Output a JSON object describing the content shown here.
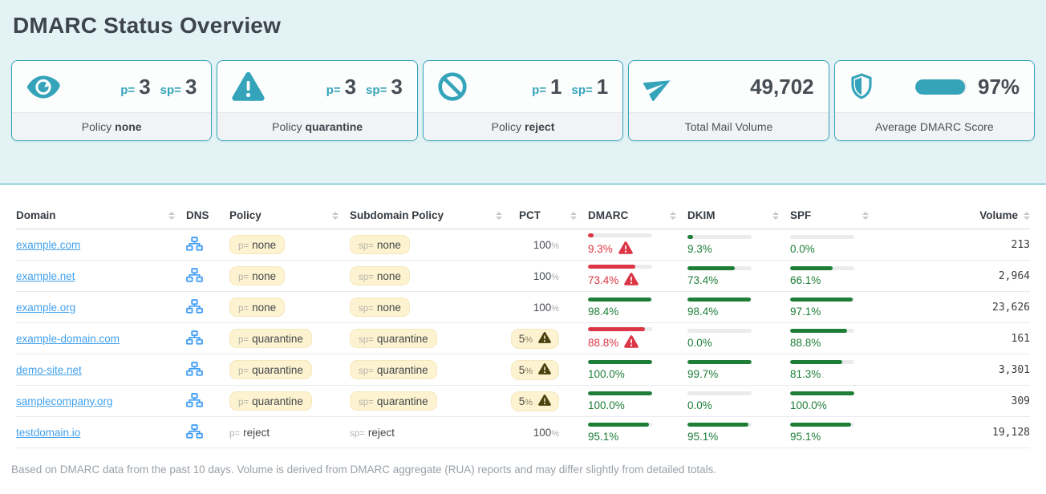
{
  "page": {
    "title": "DMARC Status Overview",
    "footnote": "Based on DMARC data from the past 10 days. Volume is derived from DMARC aggregate (RUA) reports and may differ slightly from detailed totals."
  },
  "colors": {
    "accent_teal": "#35a4ba",
    "hero_background": "#e3f2f5",
    "link_blue": "#42a1ee",
    "dns_icon_blue": "#3f9cf5",
    "badge_yellow": "#fdf3d0",
    "bar_red": "#dc3545",
    "bar_green": "#1e7e38"
  },
  "cards": [
    {
      "id": "policy-none",
      "kind": "policy",
      "icon": "eye-icon",
      "p_label": "p=",
      "p_value": "3",
      "sp_label": "sp=",
      "sp_value": "3",
      "foot_prefix": "Policy",
      "foot_value": "none"
    },
    {
      "id": "policy-quarantine",
      "kind": "policy",
      "icon": "alert-triangle-icon",
      "p_label": "p=",
      "p_value": "3",
      "sp_label": "sp=",
      "sp_value": "3",
      "foot_prefix": "Policy",
      "foot_value": "quarantine"
    },
    {
      "id": "policy-reject",
      "kind": "policy",
      "icon": "ban-icon",
      "p_label": "p=",
      "p_value": "1",
      "sp_label": "sp=",
      "sp_value": "1",
      "foot_prefix": "Policy",
      "foot_value": "reject"
    },
    {
      "id": "total-mail-volume",
      "kind": "value",
      "icon": "paper-plane-icon",
      "value": "49,702",
      "foot_label": "Total Mail Volume"
    },
    {
      "id": "average-dmarc-score",
      "kind": "score",
      "icon": "shield-icon",
      "value": "97%",
      "score_pct": 97,
      "foot_label": "Average DMARC Score"
    }
  ],
  "table": {
    "columns": [
      {
        "key": "domain",
        "label": "Domain",
        "sortable": true
      },
      {
        "key": "dns",
        "label": "DNS",
        "sortable": false
      },
      {
        "key": "policy",
        "label": "Policy",
        "sortable": true
      },
      {
        "key": "sub",
        "label": "Subdomain Policy",
        "sortable": true
      },
      {
        "key": "pct",
        "label": "PCT",
        "sortable": true
      },
      {
        "key": "dmarc",
        "label": "DMARC",
        "sortable": true
      },
      {
        "key": "dkim",
        "label": "DKIM",
        "sortable": true
      },
      {
        "key": "spf",
        "label": "SPF",
        "sortable": true
      },
      {
        "key": "vol",
        "label": "Volume",
        "sortable": true
      }
    ],
    "rows": [
      {
        "domain": "example.com",
        "policy": {
          "prefix": "p=",
          "value": "none",
          "badge": true
        },
        "sub": {
          "prefix": "sp=",
          "value": "none",
          "badge": true
        },
        "pct": {
          "value": "100",
          "warn": false
        },
        "dmarc": {
          "display": "9.3%",
          "pct": 9.3,
          "warn": true
        },
        "dkim": {
          "display": "9.3%",
          "pct": 9.3
        },
        "spf": {
          "display": "0.0%",
          "pct": 0
        },
        "volume": "213"
      },
      {
        "domain": "example.net",
        "policy": {
          "prefix": "p=",
          "value": "none",
          "badge": true
        },
        "sub": {
          "prefix": "sp=",
          "value": "none",
          "badge": true
        },
        "pct": {
          "value": "100",
          "warn": false
        },
        "dmarc": {
          "display": "73.4%",
          "pct": 73.4,
          "warn": true
        },
        "dkim": {
          "display": "73.4%",
          "pct": 73.4
        },
        "spf": {
          "display": "66.1%",
          "pct": 66.1
        },
        "volume": "2,964"
      },
      {
        "domain": "example.org",
        "policy": {
          "prefix": "p=",
          "value": "none",
          "badge": true
        },
        "sub": {
          "prefix": "sp=",
          "value": "none",
          "badge": true
        },
        "pct": {
          "value": "100",
          "warn": false
        },
        "dmarc": {
          "display": "98.4%",
          "pct": 98.4,
          "warn": false
        },
        "dkim": {
          "display": "98.4%",
          "pct": 98.4
        },
        "spf": {
          "display": "97.1%",
          "pct": 97.1
        },
        "volume": "23,626"
      },
      {
        "domain": "example-domain.com",
        "policy": {
          "prefix": "p=",
          "value": "quarantine",
          "badge": true
        },
        "sub": {
          "prefix": "sp=",
          "value": "quarantine",
          "badge": true
        },
        "pct": {
          "value": "5",
          "warn": true
        },
        "dmarc": {
          "display": "88.8%",
          "pct": 88.8,
          "warn": true
        },
        "dkim": {
          "display": "0.0%",
          "pct": 0
        },
        "spf": {
          "display": "88.8%",
          "pct": 88.8
        },
        "volume": "161"
      },
      {
        "domain": "demo-site.net",
        "policy": {
          "prefix": "p=",
          "value": "quarantine",
          "badge": true
        },
        "sub": {
          "prefix": "sp=",
          "value": "quarantine",
          "badge": true
        },
        "pct": {
          "value": "5",
          "warn": true
        },
        "dmarc": {
          "display": "100.0%",
          "pct": 100,
          "warn": false
        },
        "dkim": {
          "display": "99.7%",
          "pct": 99.7
        },
        "spf": {
          "display": "81.3%",
          "pct": 81.3
        },
        "volume": "3,301"
      },
      {
        "domain": "samplecompany.org",
        "policy": {
          "prefix": "p=",
          "value": "quarantine",
          "badge": true
        },
        "sub": {
          "prefix": "sp=",
          "value": "quarantine",
          "badge": true
        },
        "pct": {
          "value": "5",
          "warn": true
        },
        "dmarc": {
          "display": "100.0%",
          "pct": 100,
          "warn": false
        },
        "dkim": {
          "display": "0.0%",
          "pct": 0
        },
        "spf": {
          "display": "100.0%",
          "pct": 100
        },
        "volume": "309"
      },
      {
        "domain": "testdomain.io",
        "policy": {
          "prefix": "p=",
          "value": "reject",
          "badge": false
        },
        "sub": {
          "prefix": "sp=",
          "value": "reject",
          "badge": false
        },
        "pct": {
          "value": "100",
          "warn": false
        },
        "dmarc": {
          "display": "95.1%",
          "pct": 95.1,
          "warn": false
        },
        "dkim": {
          "display": "95.1%",
          "pct": 95.1
        },
        "spf": {
          "display": "95.1%",
          "pct": 95.1
        },
        "volume": "19,128"
      }
    ]
  }
}
